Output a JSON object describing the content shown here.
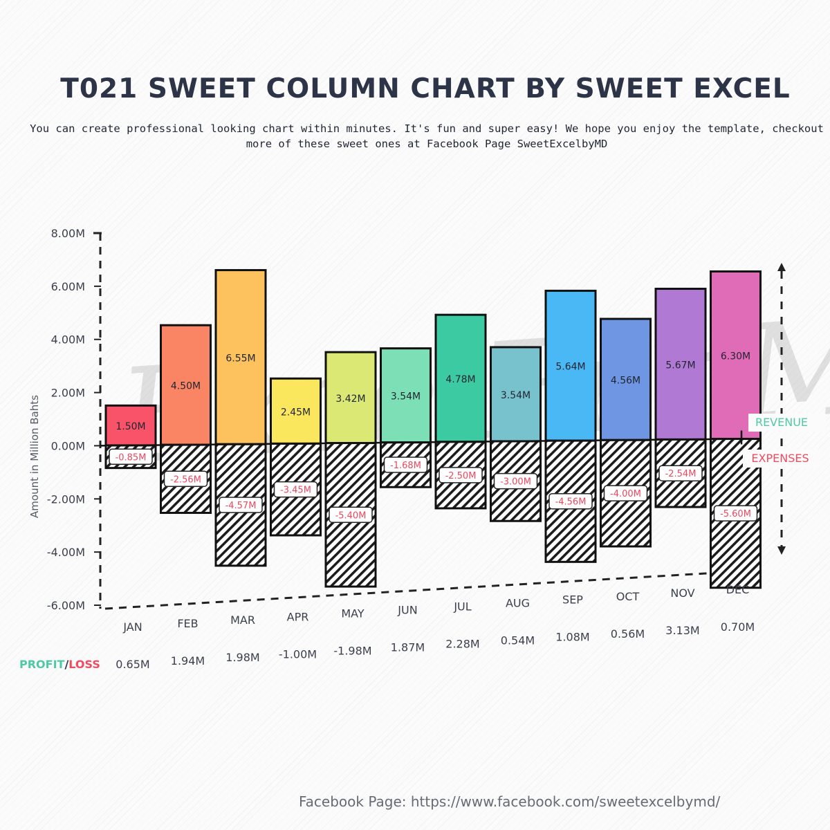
{
  "header": {
    "title": "T021 SWEET COLUMN CHART BY SWEET EXCEL",
    "subtitle": "You can create professional looking chart within minutes. It's fun and super easy! We hope you enjoy the template, checkout more of these sweet ones at Facebook Page SweetExcelbyMD"
  },
  "footer": {
    "text": "Facebook Page: https://www.facebook.com/sweetexcelbymd/"
  },
  "colors": {
    "text": "#2e3447",
    "revenue_label": "#4fc9a4",
    "expenses_label": "#f04b60",
    "expense_value_text": "#f0465c",
    "bars": [
      "#f9536a",
      "#f98564",
      "#fdc25d",
      "#fbe75d",
      "#dce874",
      "#7ddfb6",
      "#3ccaa3",
      "#78c2cd",
      "#4ab8f5",
      "#6e96e3",
      "#b07ad4",
      "#e06bb6"
    ]
  },
  "chart_data": {
    "type": "bar",
    "categories": [
      "JAN",
      "FEB",
      "MAR",
      "APR",
      "MAY",
      "JUN",
      "JUL",
      "AUG",
      "SEP",
      "OCT",
      "NOV",
      "DEC"
    ],
    "series": [
      {
        "values": [
          1.5,
          4.5,
          6.55,
          2.45,
          3.42,
          3.54,
          4.78,
          3.54,
          5.64,
          4.56,
          5.67,
          6.3
        ]
      },
      {
        "values": [
          -0.85,
          -2.56,
          -4.57,
          -3.45,
          -5.4,
          -1.68,
          -2.5,
          -3.0,
          -4.56,
          -4.0,
          -2.54,
          -5.6
        ]
      }
    ],
    "profit_loss": [
      0.65,
      1.94,
      1.98,
      -1.0,
      -1.98,
      1.87,
      2.28,
      0.54,
      1.08,
      0.56,
      3.13,
      0.7
    ],
    "revenue_labels": [
      "1.50M",
      "4.50M",
      "6.55M",
      "2.45M",
      "3.42M",
      "3.54M",
      "4.78M",
      "3.54M",
      "5.64M",
      "4.56M",
      "5.67M",
      "6.30M"
    ],
    "expense_labels": [
      "-0.85M",
      "-2.56M",
      "-4.57M",
      "-3.45M",
      "-5.40M",
      "-1.68M",
      "-2.50M",
      "-3.00M",
      "-4.56M",
      "-4.00M",
      "-2.54M",
      "-5.60M"
    ],
    "profit_loss_labels": [
      "0.65M",
      "1.94M",
      "1.98M",
      "-1.00M",
      "-1.98M",
      "1.87M",
      "2.28M",
      "0.54M",
      "1.08M",
      "0.56M",
      "3.13M",
      "0.70M"
    ],
    "ylabel": "Amount in Million Bahts",
    "yticks": [
      "8.00M",
      "6.00M",
      "4.00M",
      "2.00M",
      "0.00M",
      "-2.00M",
      "-4.00M",
      "-6.00M"
    ],
    "ylim": [
      -6,
      8
    ],
    "legend": {
      "revenue": "REVENUE",
      "expenses": "EXPENSES"
    },
    "profit_label": "PROFIT",
    "loss_label": "LOSS",
    "profit_separator": "/",
    "watermark": "ExcelFunMD"
  }
}
